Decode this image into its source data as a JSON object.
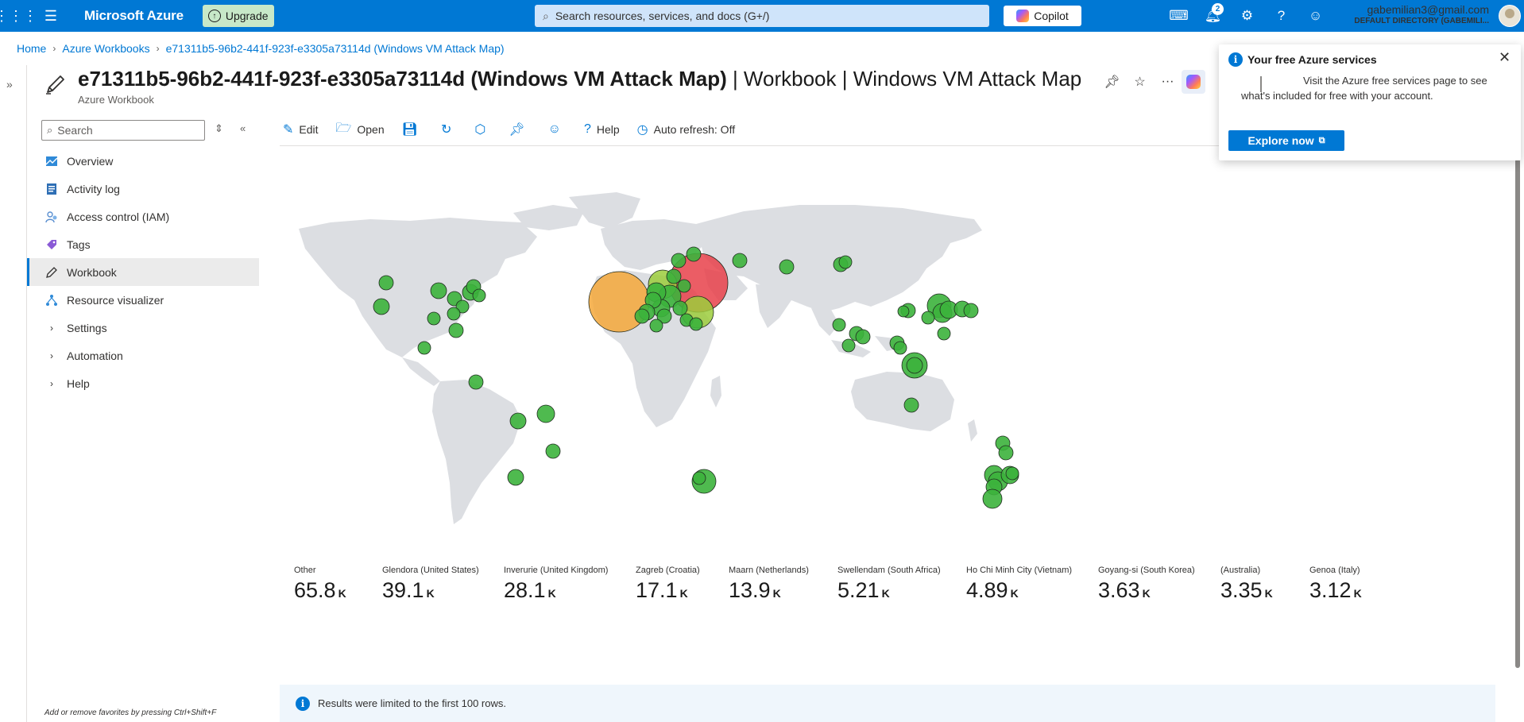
{
  "topbar": {
    "brand": "Microsoft Azure",
    "upgrade_label": "Upgrade",
    "search_placeholder": "Search resources, services, and docs (G+/)",
    "copilot_label": "Copilot",
    "notification_count": "2",
    "account_email": "gabemilian3@gmail.com",
    "account_directory": "DEFAULT DIRECTORY (GABEMILI..."
  },
  "breadcrumb": {
    "items": [
      "Home",
      "Azure Workbooks",
      "e71311b5-96b2-441f-923f-e3305a73114d (Windows VM Attack Map)"
    ]
  },
  "header": {
    "title_bold": "e71311b5-96b2-441f-923f-e3305a73114d (Windows VM Attack Map)",
    "title_rest": " | Workbook | Windows VM Attack Map",
    "subtitle": "Azure Workbook"
  },
  "sidebar": {
    "search_placeholder": "Search",
    "items": [
      {
        "label": "Overview",
        "icon": "overview-icon"
      },
      {
        "label": "Activity log",
        "icon": "activity-log-icon"
      },
      {
        "label": "Access control (IAM)",
        "icon": "iam-icon"
      },
      {
        "label": "Tags",
        "icon": "tag-icon"
      },
      {
        "label": "Workbook",
        "icon": "pencil-icon"
      },
      {
        "label": "Resource visualizer",
        "icon": "resource-visualizer-icon"
      },
      {
        "label": "Settings",
        "icon": "chevron-right-icon"
      },
      {
        "label": "Automation",
        "icon": "chevron-right-icon"
      },
      {
        "label": "Help",
        "icon": "chevron-right-icon"
      }
    ],
    "favorites_hint": "Add or remove favorites by pressing Ctrl+Shift+F"
  },
  "toolbar": {
    "edit": "Edit",
    "open": "Open",
    "help": "Help",
    "auto_refresh": "Auto refresh: Off"
  },
  "tiles": [
    {
      "label": "Other",
      "value": "65.8",
      "unit": "K"
    },
    {
      "label": "Glendora (United States)",
      "value": "39.1",
      "unit": "K"
    },
    {
      "label": "Inverurie (United Kingdom)",
      "value": "28.1",
      "unit": "K"
    },
    {
      "label": "Zagreb (Croatia)",
      "value": "17.1",
      "unit": "K"
    },
    {
      "label": "Maarn (Netherlands)",
      "value": "13.9",
      "unit": "K"
    },
    {
      "label": "Swellendam (South Africa)",
      "value": "5.21",
      "unit": "K"
    },
    {
      "label": "Ho Chi Minh City (Vietnam)",
      "value": "4.89",
      "unit": "K"
    },
    {
      "label": "Goyang-si (South Korea)",
      "value": "3.63",
      "unit": "K"
    },
    {
      "label": "(Australia)",
      "value": "3.35",
      "unit": "K"
    },
    {
      "label": "Genoa (Italy)",
      "value": "3.12",
      "unit": "K"
    }
  ],
  "info_message": "Results were limited to the first 100 rows.",
  "notification": {
    "title": "Your free Azure services",
    "body": "Visit the Azure free services page to see what's included for free with your account.",
    "button": "Explore now"
  },
  "colors": {
    "azure_blue": "#0078d4",
    "high": "#e8414a",
    "mid": "#f5a83a",
    "lowmid": "#9ccc3c",
    "low": "#3cb33c"
  }
}
